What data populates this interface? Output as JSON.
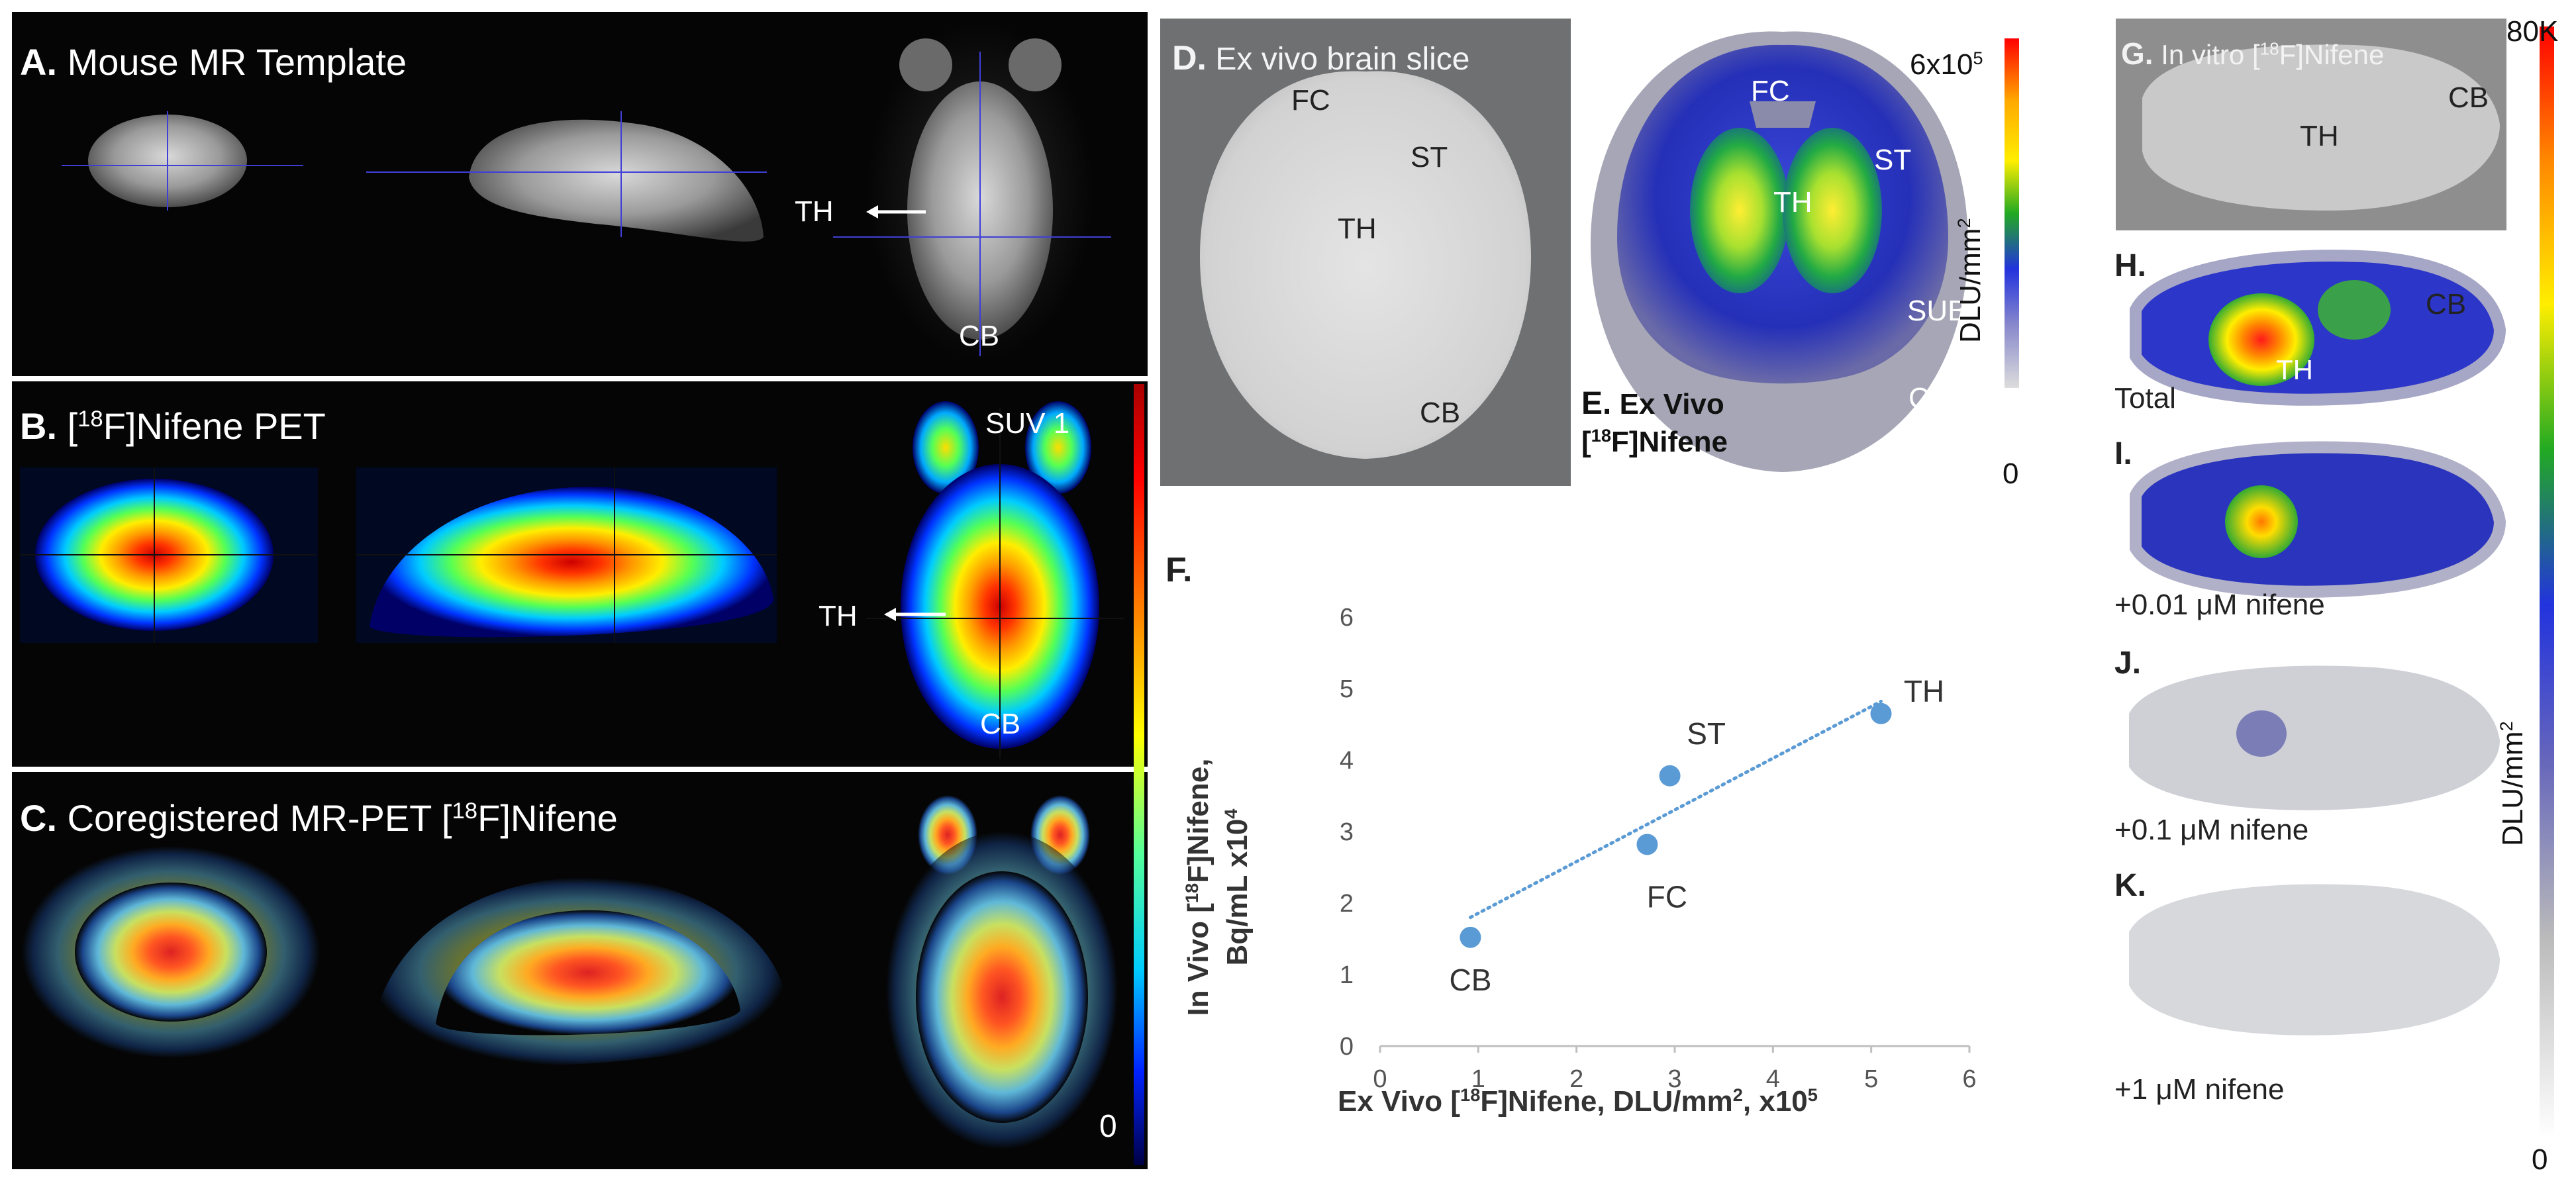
{
  "colors": {
    "background": "#ffffff",
    "panel_black": "#050505",
    "crosshair_blue": "#3f3fd8",
    "trend": "#5b9bd5",
    "point": "#5b9bd5",
    "axis_grey": "#bfbfbf",
    "text_dark": "#333333"
  },
  "panelA": {
    "letter": "A.",
    "title": "Mouse MR Template",
    "th": "TH",
    "cb": "CB"
  },
  "panelB": {
    "letter": "B.",
    "title_pre": "[",
    "title_sup": "18",
    "title_post": "F]Nifene PET",
    "suv": "SUV 1",
    "th": "TH",
    "cb": "CB"
  },
  "panelC": {
    "letter": "C.",
    "title_pre": "Coregistered MR-PET [",
    "title_sup": "18",
    "title_post": "F]Nifene",
    "zero": "0"
  },
  "panelD": {
    "letter": "D.",
    "title": "Ex vivo brain slice",
    "fc": "FC",
    "st": "ST",
    "th": "TH",
    "cb": "CB"
  },
  "panelE": {
    "letter": "E.",
    "title_line1": "Ex Vivo",
    "title_pre": "[",
    "title_sup": "18",
    "title_post": "F]Nifene",
    "fc": "FC",
    "st": "ST",
    "th": "TH",
    "sub": "SUB",
    "cb": "CB",
    "scale_max_base": "6x10",
    "scale_max_exp": "5",
    "scale_min": "0",
    "unit_pre": "DLU/mm",
    "unit_sup": "2"
  },
  "panelF": {
    "letter": "F."
  },
  "panelG": {
    "letter": "G.",
    "title_pre": "In vitro [",
    "title_sup": "18",
    "title_post": "F]Nifene",
    "th": "TH",
    "cb": "CB",
    "scale_max": "80K",
    "scale_min": "0",
    "unit_pre": "DLU/mm",
    "unit_sup": "2"
  },
  "panelH": {
    "letter": "H.",
    "cond": "Total",
    "th": "TH",
    "cb": "CB"
  },
  "panelI": {
    "letter": "I.",
    "cond": "+0.01 μM nifene"
  },
  "panelJ": {
    "letter": "J.",
    "cond": "+0.1 μM nifene"
  },
  "panelK": {
    "letter": "K.",
    "cond": "+1 μM nifene"
  },
  "chart_data": {
    "type": "scatter",
    "xlabel_pre": "Ex Vivo [",
    "xlabel_sup1": "18",
    "xlabel_mid": "F]Nifene, DLU/mm",
    "xlabel_sup2": "2",
    "xlabel_end": ", x10",
    "xlabel_sup3": "5",
    "ylabel_line1_pre": "In Vivo [",
    "ylabel_line1_sup": "18",
    "ylabel_line1_post": "F]Nifene,",
    "ylabel_line2_pre": "Bq/mL x10",
    "ylabel_line2_sup": "4",
    "xlim": [
      0,
      6
    ],
    "ylim": [
      0,
      6
    ],
    "x_ticks": [
      "0",
      "1",
      "2",
      "3",
      "4",
      "5",
      "6"
    ],
    "y_ticks": [
      "0",
      "1",
      "2",
      "3",
      "4",
      "5",
      "6"
    ],
    "points": [
      {
        "label": "CB",
        "x": 0.92,
        "y": 1.52
      },
      {
        "label": "FC",
        "x": 2.72,
        "y": 2.82
      },
      {
        "label": "ST",
        "x": 2.95,
        "y": 3.78
      },
      {
        "label": "TH",
        "x": 5.1,
        "y": 4.65
      }
    ],
    "trendline": {
      "style": "dotted",
      "from": [
        0.92,
        1.8
      ],
      "to": [
        5.1,
        4.82
      ]
    }
  }
}
